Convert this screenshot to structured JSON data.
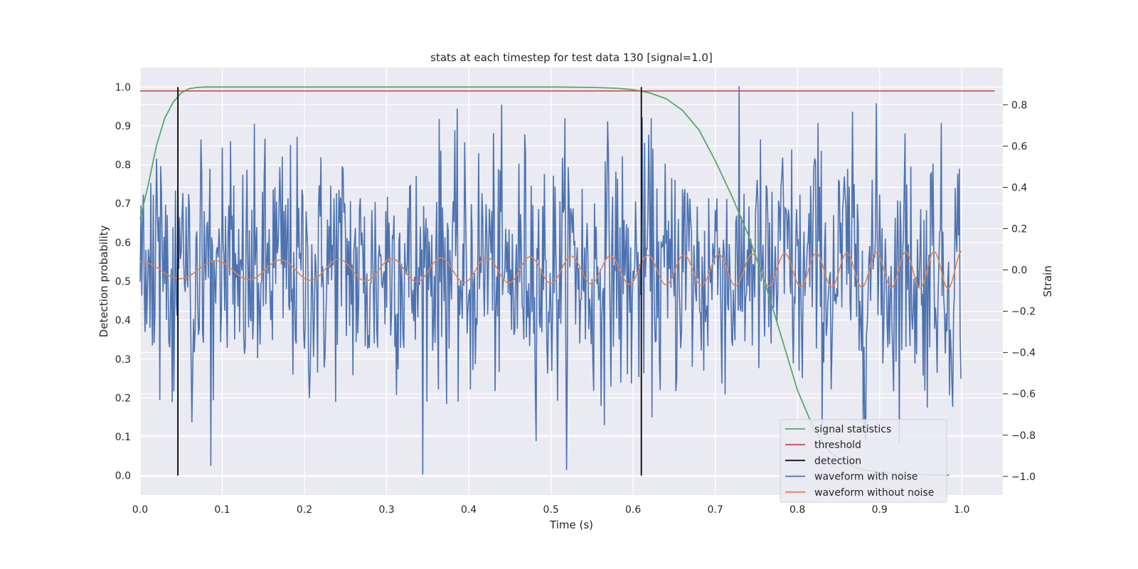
{
  "chart_data": {
    "type": "line",
    "title": "stats at each timestep for test data 130 [signal=1.0]",
    "xlabel": "Time (s)",
    "ylabel_left": "Detection probability",
    "ylabel_right": "Strain",
    "xlim": [
      0.0,
      1.05
    ],
    "ylim_left": [
      -0.05,
      1.05
    ],
    "ylim_right": [
      -1.09,
      0.98
    ],
    "x_ticks": [
      0.0,
      0.1,
      0.2,
      0.3,
      0.4,
      0.5,
      0.6,
      0.7,
      0.8,
      0.9,
      1.0
    ],
    "x_tick_labels": [
      "0.0",
      "0.1",
      "0.2",
      "0.3",
      "0.4",
      "0.5",
      "0.6",
      "0.7",
      "0.8",
      "0.9",
      "1.0"
    ],
    "y_left_ticks": [
      0.0,
      0.1,
      0.2,
      0.3,
      0.4,
      0.5,
      0.6,
      0.7,
      0.8,
      0.9,
      1.0
    ],
    "y_left_tick_labels": [
      "0.0",
      "0.1",
      "0.2",
      "0.3",
      "0.4",
      "0.5",
      "0.6",
      "0.7",
      "0.8",
      "0.9",
      "1.0"
    ],
    "y_right_ticks": [
      -1.0,
      -0.8,
      -0.6,
      -0.4,
      -0.2,
      0.0,
      0.2,
      0.4,
      0.6,
      0.8
    ],
    "y_right_tick_labels": [
      "−1.0",
      "−0.8",
      "−0.6",
      "−0.4",
      "−0.2",
      "0.0",
      "0.2",
      "0.4",
      "0.6",
      "0.8"
    ],
    "grid": true,
    "legend_position": "lower-right",
    "series": [
      {
        "name": "signal statistics",
        "axis": "left",
        "color": "#55a868",
        "x": [
          0.0,
          0.01,
          0.02,
          0.03,
          0.04,
          0.05,
          0.06,
          0.07,
          0.08,
          0.1,
          0.2,
          0.3,
          0.4,
          0.5,
          0.55,
          0.58,
          0.6,
          0.62,
          0.64,
          0.66,
          0.68,
          0.7,
          0.72,
          0.74,
          0.76,
          0.78,
          0.8,
          0.82,
          0.84,
          0.86,
          0.88,
          0.9,
          0.92,
          0.94,
          0.96,
          0.98,
          0.985
        ],
        "y": [
          0.66,
          0.75,
          0.85,
          0.92,
          0.96,
          0.985,
          0.996,
          0.999,
          1.0,
          1.0,
          1.0,
          1.0,
          1.0,
          1.0,
          0.999,
          0.997,
          0.993,
          0.985,
          0.97,
          0.94,
          0.89,
          0.81,
          0.72,
          0.62,
          0.5,
          0.36,
          0.22,
          0.12,
          0.06,
          0.03,
          0.015,
          0.008,
          0.005,
          0.003,
          0.002,
          0.001,
          0.001
        ]
      },
      {
        "name": "threshold",
        "axis": "left",
        "color": "#c44e52",
        "x": [
          0.0,
          1.04
        ],
        "y": [
          0.99,
          0.99
        ]
      },
      {
        "name": "detection",
        "axis": "left",
        "color": "#000000",
        "vlines": [
          0.046,
          0.61
        ],
        "y": [
          0.0,
          1.0
        ]
      },
      {
        "name": "waveform with noise",
        "axis": "right",
        "color": "#4c72b0",
        "noise_std": 0.3,
        "range": [
          -0.99,
          0.89
        ]
      },
      {
        "name": "waveform without noise",
        "axis": "right",
        "color": "#dd8452",
        "amplitude_start": 0.04,
        "amplitude_end": 0.09,
        "freq_start_hz": 10,
        "freq_end_hz": 30
      }
    ]
  }
}
